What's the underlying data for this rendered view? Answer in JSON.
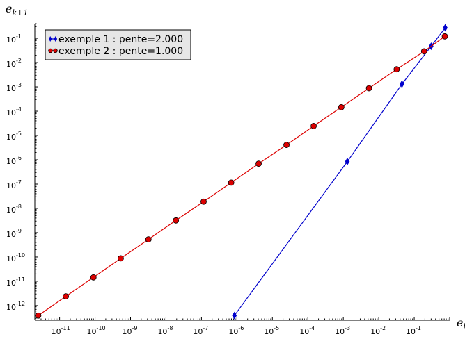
{
  "chart_data": {
    "type": "line",
    "xscale": "log",
    "yscale": "log",
    "xlim": [
      2e-12,
      1.0
    ],
    "ylim": [
      2.5e-13,
      0.4
    ],
    "grid": false,
    "xlabel_base": "e",
    "xlabel_sub": "k",
    "ylabel_base": "e",
    "ylabel_sub": "k+1",
    "legend_position": "top-left",
    "x_ticks": [
      {
        "base": "10",
        "exp": "-11"
      },
      {
        "base": "10",
        "exp": "-10"
      },
      {
        "base": "10",
        "exp": "-9"
      },
      {
        "base": "10",
        "exp": "-8"
      },
      {
        "base": "10",
        "exp": "-7"
      },
      {
        "base": "10",
        "exp": "-6"
      },
      {
        "base": "10",
        "exp": "-5"
      },
      {
        "base": "10",
        "exp": "-4"
      },
      {
        "base": "10",
        "exp": "-3"
      },
      {
        "base": "10",
        "exp": "-2"
      },
      {
        "base": "10",
        "exp": "-1"
      }
    ],
    "y_ticks": [
      {
        "base": "10",
        "exp": "-12"
      },
      {
        "base": "10",
        "exp": "-11"
      },
      {
        "base": "10",
        "exp": "-10"
      },
      {
        "base": "10",
        "exp": "-9"
      },
      {
        "base": "10",
        "exp": "-8"
      },
      {
        "base": "10",
        "exp": "-7"
      },
      {
        "base": "10",
        "exp": "-6"
      },
      {
        "base": "10",
        "exp": "-5"
      },
      {
        "base": "10",
        "exp": "-4"
      },
      {
        "base": "10",
        "exp": "-3"
      },
      {
        "base": "10",
        "exp": "-2"
      },
      {
        "base": "10",
        "exp": "-1"
      }
    ],
    "series": [
      {
        "name": "exemple 1 : pente=2.000",
        "color": "#0000cc",
        "marker": "diamond",
        "x": [
          8.5e-07,
          0.0013,
          0.045,
          0.3,
          0.75
        ],
        "y": [
          3.9e-13,
          8.5e-07,
          0.0013,
          0.047,
          0.27
        ]
      },
      {
        "name": "exemple 2 : pente=1.000",
        "color": "#dd0000",
        "marker": "circle",
        "x": [
          2.5e-12,
          1.5e-11,
          9e-11,
          5.3e-10,
          3.2e-09,
          1.9e-08,
          1.15e-07,
          6.9e-07,
          4.1e-06,
          2.5e-05,
          0.000146,
          0.00088,
          0.0053,
          0.032,
          0.19,
          0.73
        ],
        "y": [
          3.9e-13,
          2.4e-12,
          1.45e-11,
          8.8e-11,
          5.3e-10,
          3.2e-09,
          1.9e-08,
          1.15e-07,
          6.9e-07,
          4.1e-06,
          2.45e-05,
          0.000146,
          0.00088,
          0.0053,
          0.029,
          0.12
        ]
      }
    ]
  }
}
